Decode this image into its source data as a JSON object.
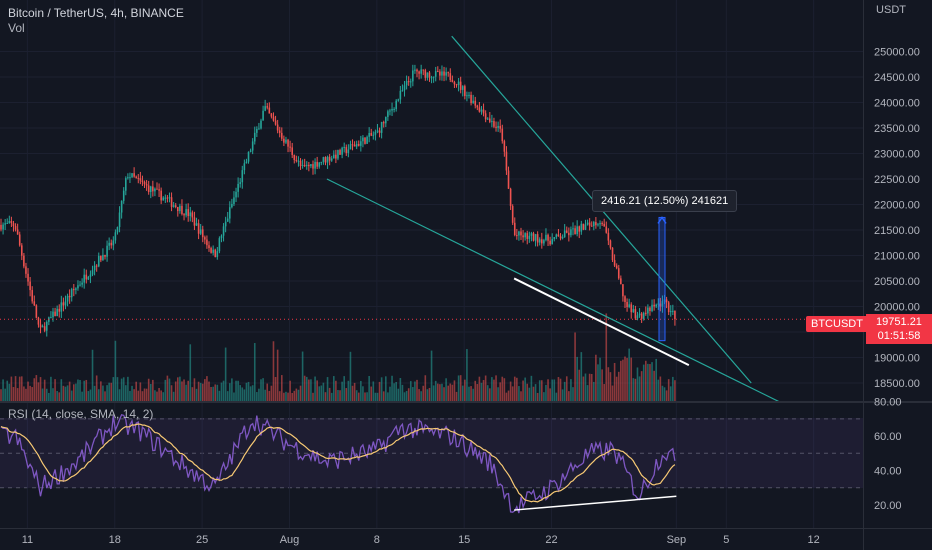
{
  "legend": {
    "symbol": "Bitcoin / TetherUS, 4h, BINANCE",
    "volume": "Vol"
  },
  "rsi_legend": "RSI (14, close, SMA, 14, 2)",
  "price_axis": {
    "currency": "USDT",
    "ticks": [
      "25000.00",
      "24500.00",
      "24000.00",
      "23500.00",
      "23000.00",
      "22500.00",
      "22000.00",
      "21500.00",
      "21000.00",
      "20500.00",
      "20000.00",
      "19500.00",
      "19000.00",
      "18500.00"
    ]
  },
  "rsi_axis": {
    "ticks": [
      "80.00",
      "60.00",
      "40.00",
      "20.00"
    ]
  },
  "time_axis": {
    "ticks": [
      "11",
      "18",
      "25",
      "Aug",
      "8",
      "15",
      "22",
      "Sep",
      "5",
      "12"
    ]
  },
  "current_price": {
    "symbol": "BTCUSDT",
    "price": "19751.21",
    "countdown": "01:51:58",
    "value": 19751.21
  },
  "measure_label": "2416.21 (12.50%) 241621",
  "colors": {
    "background": "#131722",
    "up": "#26a69a",
    "down": "#ef5350",
    "rsi_line": "#7e57c2",
    "rsi_ma": "#f7c974",
    "trendline": "#26a69a",
    "measure": "#2962ff",
    "price_tag": "#f23645"
  },
  "chart_data": [
    {
      "type": "candlestick",
      "title": "Bitcoin / TetherUS, 4h, BINANCE",
      "ylabel": "USDT",
      "ylim": [
        18300,
        25600
      ],
      "x_ticks": [
        "11",
        "18",
        "25",
        "Aug",
        "8",
        "15",
        "22",
        "Sep",
        "5",
        "12"
      ],
      "trend_anchors": {
        "x": [
          "Jul 10",
          "Jul 12",
          "Jul 18",
          "Jul 19",
          "Jul 24",
          "Jul 26",
          "Jul 30",
          "Aug 2",
          "Aug 5",
          "Aug 8",
          "Aug 11",
          "Aug 14",
          "Aug 18",
          "Aug 19",
          "Aug 22",
          "Aug 26",
          "Aug 28",
          "Aug 29",
          "Aug 31",
          "Sep 1"
        ],
        "close": [
          21600,
          19500,
          21300,
          22600,
          21800,
          21000,
          23900,
          22700,
          23000,
          23400,
          24600,
          24500,
          23400,
          21400,
          21300,
          21700,
          20000,
          19800,
          20100,
          19751.21
        ]
      },
      "last_close": 19751.21,
      "annotations": [
        {
          "type": "trendline",
          "from": {
            "x": "Aug 4",
            "y": 22500
          },
          "to": {
            "x": "Sep 12",
            "y": 17800
          }
        },
        {
          "type": "trendline",
          "from": {
            "x": "Aug 14",
            "y": 25300
          },
          "to": {
            "x": "Sep 7",
            "y": 18500
          }
        },
        {
          "type": "trendline",
          "from": {
            "x": "Aug 19",
            "y": 20550
          },
          "to": {
            "x": "Sep 2",
            "y": 18850
          }
        },
        {
          "type": "price_range",
          "from": 19330,
          "to": 21746,
          "label": "2416.21 (12.50%) 241621"
        }
      ]
    },
    {
      "type": "line",
      "title": "RSI (14, close, SMA, 14, 2)",
      "ylim": [
        10,
        80
      ],
      "bands": [
        70,
        50,
        30
      ],
      "series_shape": {
        "x": [
          "Jul 10",
          "Jul 12",
          "Jul 15",
          "Jul 18",
          "Jul 20",
          "Jul 24",
          "Jul 26",
          "Jul 29",
          "Aug 1",
          "Aug 4",
          "Aug 8",
          "Aug 10",
          "Aug 14",
          "Aug 17",
          "Aug 19",
          "Aug 22",
          "Aug 25",
          "Aug 27",
          "Aug 29",
          "Aug 31",
          "Sep 1"
        ],
        "rsi": [
          60,
          30,
          45,
          68,
          63,
          40,
          30,
          70,
          55,
          45,
          52,
          65,
          60,
          45,
          18,
          30,
          50,
          52,
          25,
          52,
          45
        ]
      },
      "annotations": [
        {
          "type": "trendline",
          "from": {
            "x": "Aug 19",
            "y": 17
          },
          "to": {
            "x": "Sep 1",
            "y": 25
          }
        }
      ]
    }
  ]
}
